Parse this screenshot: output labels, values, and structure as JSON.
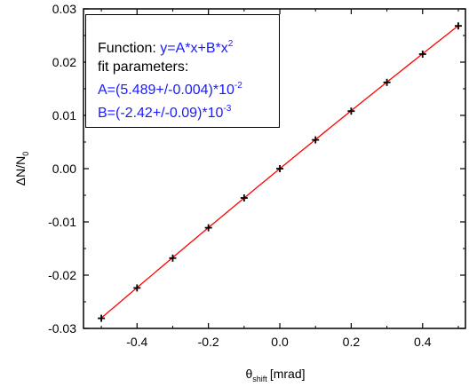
{
  "chart_data": {
    "type": "scatter",
    "xlabel": "θ",
    "xlabel_sub": "shift",
    "xlabel_unit": "[mrad]",
    "ylabel": "ΔN/N",
    "ylabel_sub": "0",
    "xlim": [
      -0.55,
      0.52
    ],
    "ylim": [
      -0.03,
      0.03
    ],
    "xticks": [
      -0.4,
      -0.2,
      0.0,
      0.2,
      0.4
    ],
    "xtick_labels": [
      "-0.4",
      "-0.2",
      "0.0",
      "0.2",
      "0.4"
    ],
    "yticks": [
      -0.03,
      -0.02,
      -0.01,
      0.0,
      0.01,
      0.02,
      0.03
    ],
    "ytick_labels": [
      "-0.03",
      "-0.02",
      "-0.01",
      "0.00",
      "0.01",
      "0.02",
      "0.03"
    ],
    "grid": false,
    "series": [
      {
        "marker": "plus",
        "color": "#000000",
        "x": [
          -0.5,
          -0.4,
          -0.3,
          -0.2,
          -0.1,
          0.0,
          0.1,
          0.2,
          0.3,
          0.4,
          0.5
        ],
        "y": [
          -0.0281,
          -0.0224,
          -0.0168,
          -0.0111,
          -0.0055,
          0.0,
          0.0054,
          0.0108,
          0.0162,
          0.0215,
          0.0268
        ]
      }
    ],
    "fit": {
      "A": 0.05489,
      "B": -0.00242,
      "x_range": [
        -0.5,
        0.5
      ],
      "color": "#ff0000"
    },
    "legend": {
      "position": "top-left",
      "line1_label": "Function: ",
      "line1_formula_main": "y=A*x+B*x",
      "line1_formula_exp": "2",
      "line2": "fit parameters:",
      "line3_main": "A=(5.489+/-0.004)*10",
      "line3_exp": "-2",
      "line4_main": "B=(-2.42+/-0.09)*10",
      "line4_exp": "-3",
      "text_color": "#000000",
      "highlight_color": "#1a1aff"
    }
  }
}
